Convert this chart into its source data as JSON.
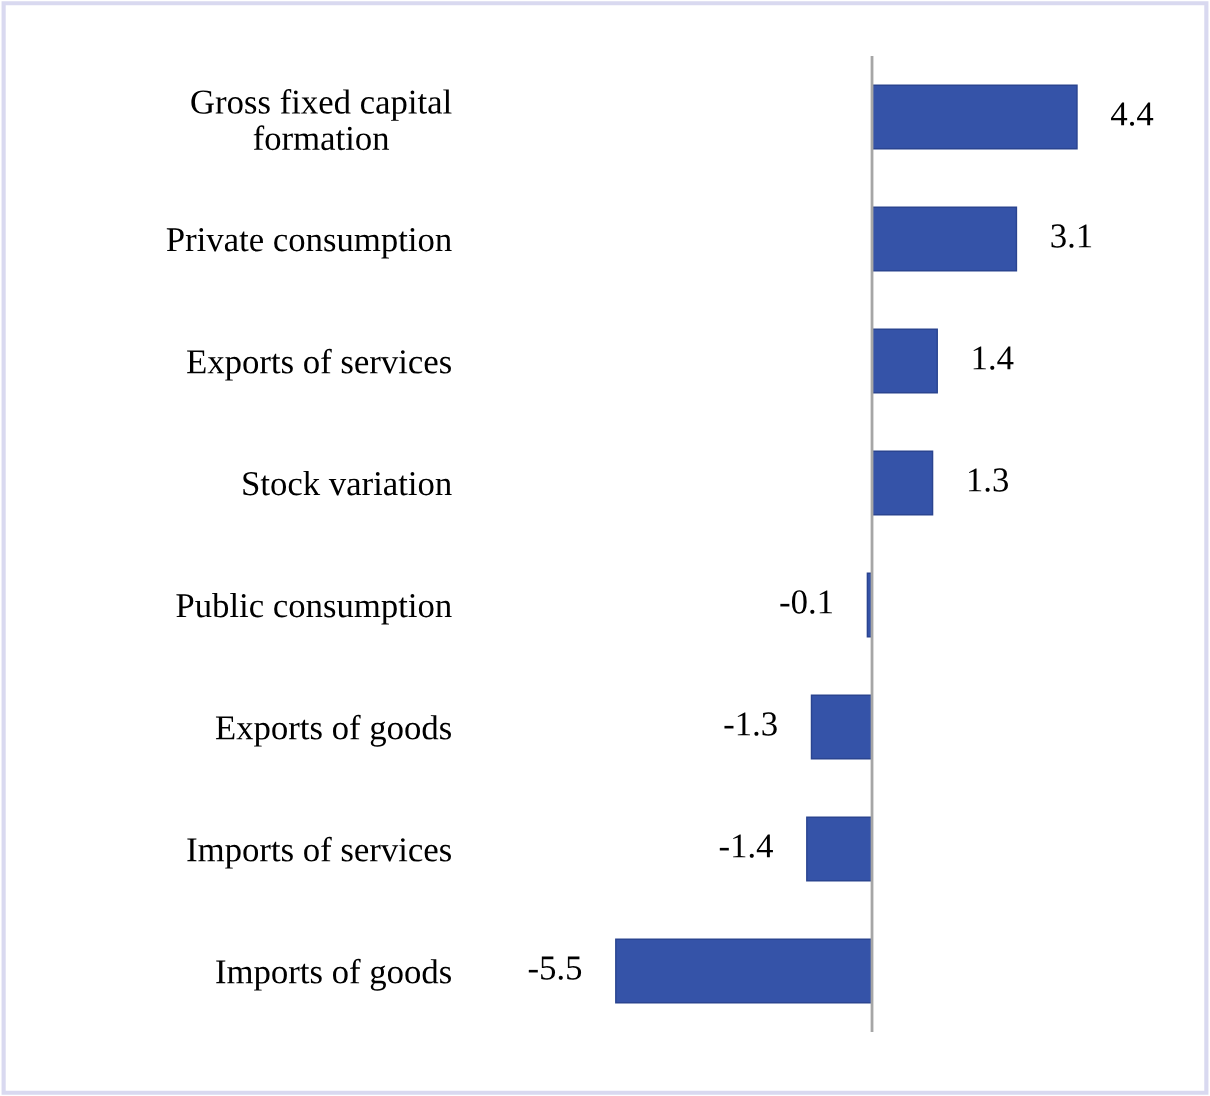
{
  "chart_data": {
    "type": "bar",
    "orientation": "horizontal",
    "categories": [
      "Gross fixed capital\nformation",
      "Private consumption",
      "Exports of services",
      "Stock variation",
      "Public consumption",
      "Exports of goods",
      "Imports of services",
      "Imports of goods"
    ],
    "values": [
      4.4,
      3.1,
      1.4,
      1.3,
      -0.1,
      -1.3,
      -1.4,
      -5.5
    ],
    "color": "#3553a8",
    "data_labels": true,
    "grid": false,
    "legend": false
  }
}
